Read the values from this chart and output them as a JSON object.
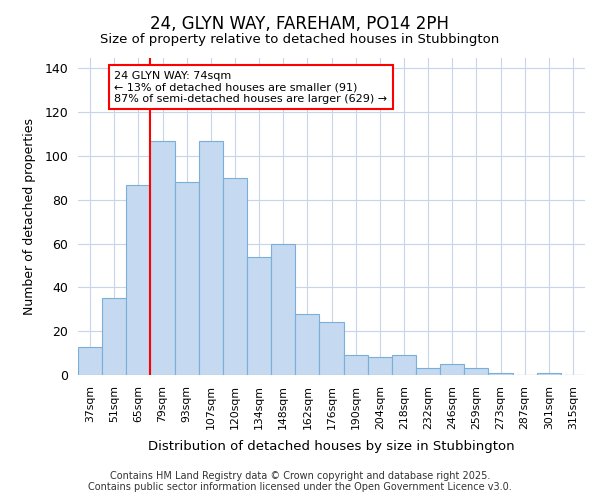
{
  "title": "24, GLYN WAY, FAREHAM, PO14 2PH",
  "subtitle": "Size of property relative to detached houses in Stubbington",
  "xlabel": "Distribution of detached houses by size in Stubbington",
  "ylabel": "Number of detached properties",
  "categories": [
    "37sqm",
    "51sqm",
    "65sqm",
    "79sqm",
    "93sqm",
    "107sqm",
    "120sqm",
    "134sqm",
    "148sqm",
    "162sqm",
    "176sqm",
    "190sqm",
    "204sqm",
    "218sqm",
    "232sqm",
    "246sqm",
    "259sqm",
    "273sqm",
    "287sqm",
    "301sqm",
    "315sqm"
  ],
  "values": [
    13,
    35,
    87,
    107,
    88,
    107,
    90,
    54,
    60,
    28,
    24,
    9,
    8,
    9,
    3,
    5,
    3,
    1,
    0,
    1,
    0
  ],
  "bar_color": "#c5d9f1",
  "bar_edge_color": "#7ab0d8",
  "marker_label": "24 GLYN WAY: 74sqm",
  "annotation_line1": "← 13% of detached houses are smaller (91)",
  "annotation_line2": "87% of semi-detached houses are larger (629) →",
  "redline_bar_index": 2,
  "ylim": [
    0,
    145
  ],
  "yticks": [
    0,
    20,
    40,
    60,
    80,
    100,
    120,
    140
  ],
  "footer_line1": "Contains HM Land Registry data © Crown copyright and database right 2025.",
  "footer_line2": "Contains public sector information licensed under the Open Government Licence v3.0.",
  "background_color": "#ffffff",
  "plot_bg_color": "#ffffff",
  "grid_color": "#c8d4e8"
}
